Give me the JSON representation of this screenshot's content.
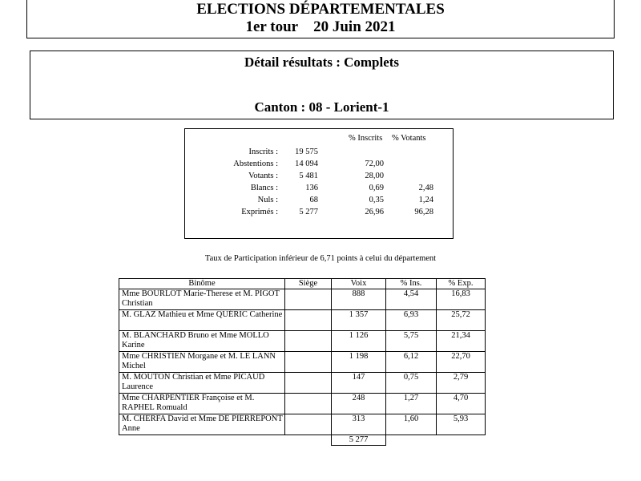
{
  "header": {
    "title": "ELECTIONS DÉPARTEMENTALES",
    "round": "1er tour",
    "date": "20 Juin 2021"
  },
  "results": {
    "detail": "Détail résultats : Complets",
    "canton": "Canton : 08 - Lorient-1"
  },
  "stats": {
    "columns": [
      "% Inscrits",
      "% Votants"
    ],
    "rows": [
      [
        "Inscrits :",
        "19 575",
        null,
        null
      ],
      [
        "Abstentions :",
        "14 094",
        "72,00",
        null
      ],
      [
        "Votants :",
        "5 481",
        "28,00",
        null
      ],
      [
        "Blancs :",
        "136",
        "0,69",
        "2,48"
      ],
      [
        "Nuls :",
        "68",
        "0,35",
        "1,24"
      ],
      [
        "Exprimés :",
        "5 277",
        "26,96",
        "96,28"
      ]
    ]
  },
  "note": "Taux de Participation inférieur de 6,71 points à celui du département",
  "table": {
    "headers": [
      "Binôme",
      "Siège",
      "Voix",
      "% Ins.",
      "% Exp."
    ],
    "rows": [
      [
        "Mme BOURLOT Marie-Therese et M. PIGOT Christian",
        null,
        "888",
        "4,54",
        "16,83"
      ],
      [
        "M. GLAZ Mathieu et Mme QUÉRIC Catherine",
        null,
        "1 357",
        "6,93",
        "25,72"
      ],
      [
        "M. BLANCHARD Bruno et Mme MOLLO Karine",
        null,
        "1 126",
        "5,75",
        "21,34"
      ],
      [
        "Mme CHRISTIEN Morgane et M. LE LANN Michel",
        null,
        "1 198",
        "6,12",
        "22,70"
      ],
      [
        "M. MOUTON Christian et Mme PICAUD Laurence",
        null,
        "147",
        "0,75",
        "2,79"
      ],
      [
        "Mme CHARPENTIER Françoise et M. RAPHEL Romuald",
        null,
        "248",
        "1,27",
        "4,70"
      ],
      [
        "M. CHERFA David et Mme DE PIERREPONT Anne",
        null,
        "313",
        "1,60",
        "5,93"
      ]
    ],
    "total": "5 277"
  }
}
